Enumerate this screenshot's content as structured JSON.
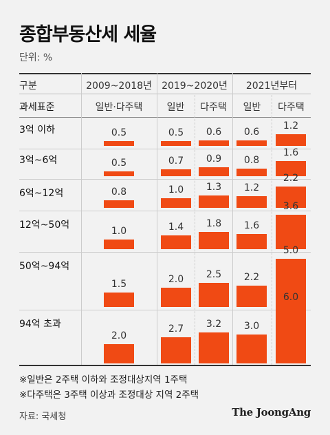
{
  "title": "종합부동산세 세율",
  "unit": "단위: %",
  "header": {
    "category": "구분",
    "groups": [
      "2009~2018년",
      "2019~2020년",
      "2021년부터"
    ],
    "tax_base": "과세표준",
    "subcols": [
      "일반·다주택",
      "일반",
      "다주택",
      "일반",
      "다주택"
    ]
  },
  "chart_data": {
    "type": "table",
    "rows": [
      "3억 이하",
      "3억~6억",
      "6억~12억",
      "12억~50억",
      "50억~94억",
      "94억 초과"
    ],
    "series": [
      {
        "name": "일반·다주택",
        "group": "2009~2018년",
        "values": [
          "0.5",
          "0.5",
          "0.8",
          "1.0",
          "1.5",
          "2.0"
        ]
      },
      {
        "name": "일반",
        "group": "2019~2020년",
        "values": [
          "0.5",
          "0.7",
          "1.0",
          "1.4",
          "2.0",
          "2.7"
        ]
      },
      {
        "name": "다주택",
        "group": "2019~2020년",
        "values": [
          "0.6",
          "0.9",
          "1.3",
          "1.8",
          "2.5",
          "3.2"
        ]
      },
      {
        "name": "일반",
        "group": "2021년부터",
        "values": [
          "0.6",
          "0.8",
          "1.2",
          "1.6",
          "2.2",
          "3.0"
        ]
      },
      {
        "name": "다주택",
        "group": "2021년부터",
        "values": [
          "1.2",
          "1.6",
          "2.2",
          "3.6",
          "5.0",
          "6.0"
        ]
      }
    ],
    "bar_color": "#f04a14"
  },
  "notes": [
    "※일반은 2주택 이하와 조정대상지역 1주택",
    "※다주택은 3주택 이상과 조정대상 지역 2주택"
  ],
  "source": "자료: 국세청",
  "brand": "The JoongAng"
}
